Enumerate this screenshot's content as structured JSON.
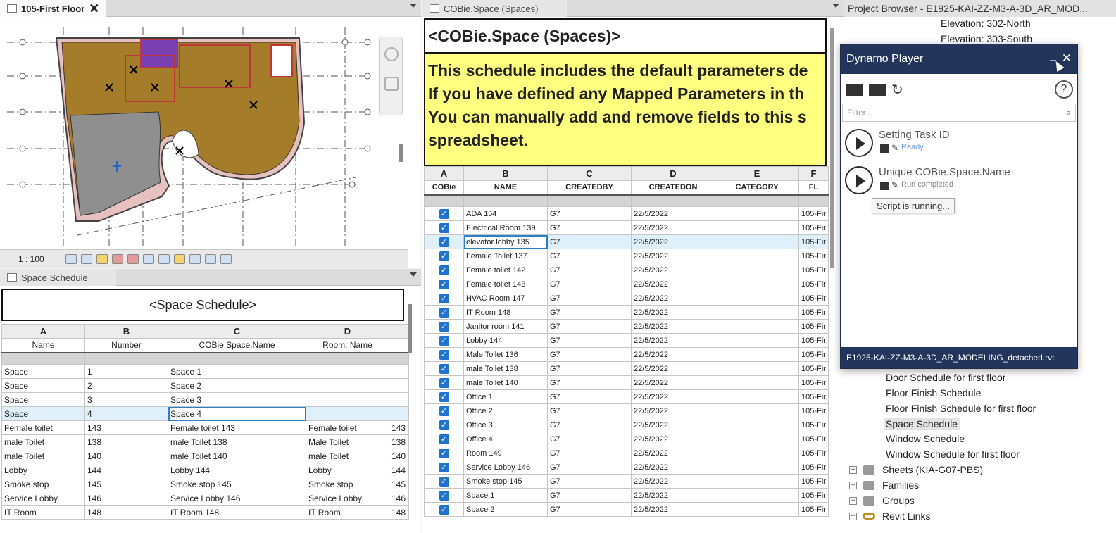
{
  "floor_plan": {
    "tab_title": "105-First Floor",
    "close_glyph": "✕",
    "scale": "1 : 100"
  },
  "space_schedule": {
    "tab_title": "Space Schedule",
    "title": "<Space Schedule>",
    "column_letters": [
      "A",
      "B",
      "C",
      "D",
      ""
    ],
    "column_headers": [
      "Name",
      "Number",
      "COBie.Space.Name",
      "Room: Name",
      ""
    ],
    "rows": [
      [
        "Space",
        "1",
        "Space 1",
        "",
        ""
      ],
      [
        "Space",
        "2",
        "Space 2",
        "",
        ""
      ],
      [
        "Space",
        "3",
        "Space 3",
        "",
        ""
      ],
      [
        "Space",
        "4",
        "Space 4",
        "",
        ""
      ],
      [
        "Female toilet",
        "143",
        "Female toilet 143",
        "Female toilet",
        "143"
      ],
      [
        "male Toilet",
        "138",
        "male Toilet 138",
        "Male Toilet",
        "138"
      ],
      [
        "male Toilet",
        "140",
        "male Toilet 140",
        "male Toilet",
        "140"
      ],
      [
        "Lobby",
        "144",
        "Lobby 144",
        "Lobby",
        "144"
      ],
      [
        "Smoke stop",
        "145",
        "Smoke stop 145",
        "Smoke stop",
        "145"
      ],
      [
        "Service Lobby",
        "146",
        "Service Lobby 146",
        "Service Lobby",
        "146"
      ],
      [
        "IT Room",
        "148",
        "IT Room 148",
        "IT Room",
        "148"
      ]
    ]
  },
  "cobie_schedule": {
    "tab_title": "COBie.Space (Spaces)",
    "title": "<COBie.Space (Spaces)>",
    "note_lines": [
      "This schedule includes the default parameters de",
      "If you have defined any Mapped Parameters in th",
      "You can manually add and remove fields to this s",
      "spreadsheet."
    ],
    "column_letters": [
      "A",
      "B",
      "C",
      "D",
      "E",
      "F"
    ],
    "column_headers": [
      "COBie",
      "NAME",
      "CREATEDBY",
      "CREATEDON",
      "CATEGORY",
      "FL"
    ],
    "check_glyph": "✓",
    "rows": [
      {
        "name": "ADA 154",
        "by": "G7",
        "on": "22/5/2022",
        "cat": "",
        "fl": "105-Fir"
      },
      {
        "name": "Electrical Room 139",
        "by": "G7",
        "on": "22/5/2022",
        "cat": "",
        "fl": "105-Fir"
      },
      {
        "name": "elevator lobby 135",
        "by": "G7",
        "on": "22/5/2022",
        "cat": "",
        "fl": "105-Fir"
      },
      {
        "name": "Female Toilet 137",
        "by": "G7",
        "on": "22/5/2022",
        "cat": "",
        "fl": "105-Fir"
      },
      {
        "name": "Female toilet 142",
        "by": "G7",
        "on": "22/5/2022",
        "cat": "",
        "fl": "105-Fir"
      },
      {
        "name": "Female toilet 143",
        "by": "G7",
        "on": "22/5/2022",
        "cat": "",
        "fl": "105-Fir"
      },
      {
        "name": "HVAC Room 147",
        "by": "G7",
        "on": "22/5/2022",
        "cat": "",
        "fl": "105-Fir"
      },
      {
        "name": "IT Room 148",
        "by": "G7",
        "on": "22/5/2022",
        "cat": "",
        "fl": "105-Fir"
      },
      {
        "name": "Janitor room 141",
        "by": "G7",
        "on": "22/5/2022",
        "cat": "",
        "fl": "105-Fir"
      },
      {
        "name": "Lobby 144",
        "by": "G7",
        "on": "22/5/2022",
        "cat": "",
        "fl": "105-Fir"
      },
      {
        "name": "Male Toilet 136",
        "by": "G7",
        "on": "22/5/2022",
        "cat": "",
        "fl": "105-Fir"
      },
      {
        "name": "male Toilet 138",
        "by": "G7",
        "on": "22/5/2022",
        "cat": "",
        "fl": "105-Fir"
      },
      {
        "name": "male Toilet 140",
        "by": "G7",
        "on": "22/5/2022",
        "cat": "",
        "fl": "105-Fir"
      },
      {
        "name": "Office 1",
        "by": "G7",
        "on": "22/5/2022",
        "cat": "",
        "fl": "105-Fir"
      },
      {
        "name": "Office 2",
        "by": "G7",
        "on": "22/5/2022",
        "cat": "",
        "fl": "105-Fir"
      },
      {
        "name": "Office 3",
        "by": "G7",
        "on": "22/5/2022",
        "cat": "",
        "fl": "105-Fir"
      },
      {
        "name": "Office 4",
        "by": "G7",
        "on": "22/5/2022",
        "cat": "",
        "fl": "105-Fir"
      },
      {
        "name": "Room 149",
        "by": "G7",
        "on": "22/5/2022",
        "cat": "",
        "fl": "105-Fir"
      },
      {
        "name": "Service Lobby 146",
        "by": "G7",
        "on": "22/5/2022",
        "cat": "",
        "fl": "105-Fir"
      },
      {
        "name": "Smoke stop 145",
        "by": "G7",
        "on": "22/5/2022",
        "cat": "",
        "fl": "105-Fir"
      },
      {
        "name": "Space 1",
        "by": "G7",
        "on": "22/5/2022",
        "cat": "",
        "fl": "105-Fir"
      },
      {
        "name": "Space 2",
        "by": "G7",
        "on": "22/5/2022",
        "cat": "",
        "fl": "105-Fir"
      }
    ]
  },
  "project_browser": {
    "title": "Project Browser - E1925-KAI-ZZ-M3-A-3D_AR_MOD...",
    "elevations": [
      "Elevation: 302-North",
      "Elevation: 303-South"
    ],
    "schedules": [
      "Door Schedule for first floor",
      "Floor Finish Schedule",
      "Floor Finish Schedule for first floor",
      "Space Schedule",
      "Window Schedule",
      "Window Schedule for first floor"
    ],
    "groups": [
      "Sheets (KIA-G07-PBS)",
      "Families",
      "Groups",
      "Revit Links"
    ],
    "expander_glyph": "+"
  },
  "dynamo_player": {
    "title": "Dynamo Player",
    "minimize_glyph": "–",
    "close_glyph": "✕",
    "refresh_glyph": "↻",
    "help_glyph": "?",
    "search_glyph": "⌕",
    "edit_glyph": "✎",
    "filter_placeholder": "Filter...",
    "scripts": [
      {
        "name": "Setting Task ID",
        "status": "Ready"
      },
      {
        "name": "Unique COBie.Space.Name",
        "status": "Run completed"
      }
    ],
    "tooltip": "Script is running...",
    "footer": "E1925-KAI-ZZ-M3-A-3D_AR_MODELING_detached.rvt"
  }
}
